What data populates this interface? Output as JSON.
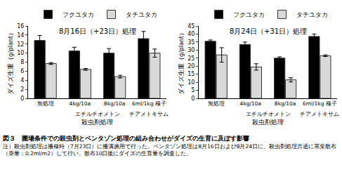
{
  "chart_data": [
    {
      "type": "bar",
      "title": "8月16日（+23日）処理",
      "y_label": "ダイズ生重（g/plant）",
      "x_label": "殺虫剤処理",
      "categories": [
        "無処理",
        "4kg/10a",
        "8kg/10a",
        "6ml/1kg 種子"
      ],
      "groups": [
        {
          "label": "エチルチオメトン",
          "span": [
            "4kg/10a",
            "8kg/10a"
          ]
        },
        {
          "label": "チアメトキサム",
          "span": [
            "6ml/1kg 種子"
          ]
        }
      ],
      "series": [
        {
          "name": "フクユタカ",
          "color": "#000000",
          "values": [
            12.8,
            10.5,
            10.0,
            13.2
          ],
          "error": [
            1.1,
            0.8,
            1.0,
            1.6
          ]
        },
        {
          "name": "タチユタカ",
          "color": "#d9d9d9",
          "values": [
            7.7,
            6.4,
            4.8,
            10.0
          ],
          "error": [
            0.2,
            0.2,
            0.3,
            0.9
          ]
        }
      ],
      "ylim": [
        0,
        16
      ],
      "yticks": [
        0,
        2,
        4,
        6,
        8,
        10,
        12,
        14,
        16
      ],
      "legend": "top"
    },
    {
      "type": "bar",
      "title": "8月24日（+31日）処理",
      "y_label": "ダイズ生重（g/plant）",
      "x_label": "殺虫剤処理",
      "categories": [
        "無処理",
        "4kg/10a",
        "8kg/10a",
        "6ml/1kg 種子"
      ],
      "groups": [
        {
          "label": "エチルチオメトン",
          "span": [
            "4kg/10a",
            "8kg/10a"
          ]
        },
        {
          "label": "チアメトキサム",
          "span": [
            "6ml/1kg 種子"
          ]
        }
      ],
      "series": [
        {
          "name": "フクユタカ",
          "color": "#000000",
          "values": [
            35.5,
            33.5,
            25.0,
            38.5
          ],
          "error": [
            0.8,
            1.5,
            0.8,
            1.5
          ]
        },
        {
          "name": "タチユタカ",
          "color": "#d9d9d9",
          "values": [
            27.0,
            19.5,
            11.5,
            26.5
          ],
          "error": [
            4.5,
            2.0,
            1.3,
            0.5
          ]
        }
      ],
      "ylim": [
        0,
        45
      ],
      "yticks": [
        0,
        5,
        10,
        15,
        20,
        25,
        30,
        35,
        40,
        45
      ],
      "legend": "top"
    }
  ],
  "figure_caption": "図３　圃場条件での殺虫剤とベンタゾン処理の組み合わせがダイズの生育に及ぼす影響",
  "note": "注）殺虫剤処理は播種時（7月23日）に播溝施用で行った。ベンタゾン処理は8月16日および8月24日に、殺虫剤処理共通に茎葉散布（薬量：0.2ml/m2）して行い、散布10日後にダイズの生育量を調査した。"
}
